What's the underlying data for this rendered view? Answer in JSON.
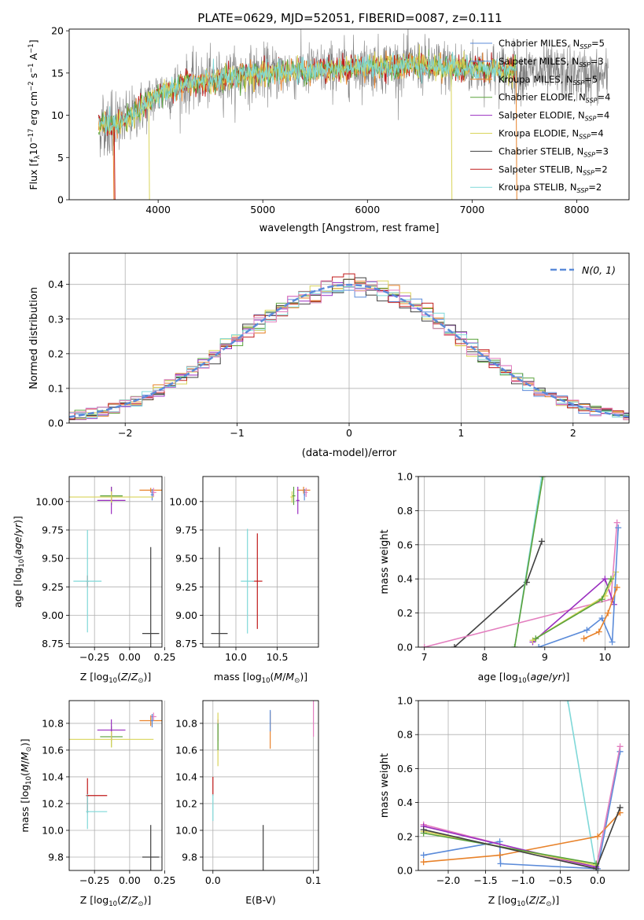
{
  "figure": {
    "title": "PLATE=0629, MJD=52051, FIBERID=0087, z=0.111"
  },
  "colors": {
    "chabrier_miles": "#5b8bd9",
    "salpeter_miles": "#5b8bd9",
    "kroupa_miles": "#e8822a",
    "chabrier_elodie": "#5aa23c",
    "salpeter_elodie": "#9a2fc0",
    "kroupa_elodie": "#d9d45a",
    "chabrier_stelib": "#404040",
    "salpeter_stelib": "#c01a1a",
    "kroupa_stelib": "#7fd8d8",
    "pink": "#e37fbf",
    "data_gray": "#808080",
    "normal_curve": "#5b8bd9",
    "grid": "#b0b0b0"
  },
  "chart_data": [
    {
      "id": "spectrum",
      "type": "line",
      "title": "PLATE=0629, MJD=52051, FIBERID=0087, z=0.111",
      "xlabel": "wavelength [Angstrom, rest frame]",
      "ylabel": "Flux [f_λ 10^-17 erg cm^-2 s^-1 A^-1]",
      "xlim": [
        3150,
        8500
      ],
      "ylim": [
        0,
        20.2
      ],
      "xticks": [
        4000,
        5000,
        6000,
        7000,
        8000
      ],
      "yticks": [
        0,
        5,
        10,
        15,
        20
      ],
      "grid": false,
      "legend_position": "top-right",
      "series": [
        {
          "name": "Chabrier MILES, N_SSP=5",
          "color_key": "chabrier_miles"
        },
        {
          "name": "Salpeter MILES, N_SSP=3",
          "color_key": "salpeter_miles"
        },
        {
          "name": "Kroupa MILES, N_SSP=5",
          "color_key": "kroupa_miles"
        },
        {
          "name": "Chabrier ELODIE, N_SSP=4",
          "color_key": "chabrier_elodie"
        },
        {
          "name": "Salpeter ELODIE, N_SSP=4",
          "color_key": "salpeter_elodie"
        },
        {
          "name": "Kroupa ELODIE, N_SSP=4",
          "color_key": "kroupa_elodie"
        },
        {
          "name": "Chabrier STELIB, N_SSP=3",
          "color_key": "chabrier_stelib"
        },
        {
          "name": "Salpeter STELIB, N_SSP=2",
          "color_key": "salpeter_stelib"
        },
        {
          "name": "Kroupa STELIB, N_SSP=2",
          "color_key": "kroupa_stelib"
        }
      ],
      "continuum": {
        "x": [
          3430,
          3600,
          3800,
          4000,
          4300,
          4600,
          5000,
          5500,
          6000,
          6500,
          7000,
          7500,
          8000,
          8300
        ],
        "y": [
          9.0,
          8.6,
          10.5,
          12.5,
          13.8,
          14.3,
          15.0,
          15.3,
          15.8,
          15.9,
          15.6,
          15.2,
          14.8,
          14.5
        ]
      },
      "data_range": [
        3430,
        8300
      ],
      "model_range": [
        3430,
        7420
      ],
      "dips": [
        {
          "x": 3570,
          "color_key": "kroupa_miles"
        },
        {
          "x": 3580,
          "color_key": "salpeter_stelib"
        },
        {
          "x": 3910,
          "color_key": "kroupa_elodie"
        },
        {
          "x": 6800,
          "color_key": "kroupa_elodie"
        },
        {
          "x": 7420,
          "color_key": "kroupa_miles"
        }
      ]
    },
    {
      "id": "residuals",
      "type": "step-histogram",
      "xlabel": "(data-model)/error",
      "ylabel": "Normed distribution",
      "xlim": [
        -2.5,
        2.5
      ],
      "ylim": [
        0,
        0.49
      ],
      "xticks": [
        -2,
        -1,
        0,
        1,
        2
      ],
      "yticks": [
        0.0,
        0.1,
        0.2,
        0.3,
        0.4
      ],
      "grid": true,
      "legend_position": "top-right",
      "legend": "N(0, 1)",
      "bin_width": 0.1
    },
    {
      "id": "age_vs_Z",
      "type": "errorbar",
      "xlabel": "Z [log10(Z/Z_sun)]",
      "ylabel": "age [log10(age/yr)]",
      "xlim": [
        -0.43,
        0.23
      ],
      "ylim": [
        8.72,
        10.22
      ],
      "xticks": [
        -0.25,
        0.0,
        0.25
      ],
      "yticks": [
        8.75,
        9.0,
        9.25,
        9.5,
        9.75,
        10.0
      ],
      "grid": true,
      "points": [
        {
          "x": 0.15,
          "y": 10.1,
          "xerr": 0.08,
          "yerr": 0.02,
          "color_key": "kroupa_miles"
        },
        {
          "x": 0.17,
          "y": 10.08,
          "xerr": 0.02,
          "yerr": 0.04,
          "color_key": "pink"
        },
        {
          "x": 0.16,
          "y": 10.06,
          "xerr": 0.01,
          "yerr": 0.05,
          "color_key": "chabrier_miles"
        },
        {
          "x": -0.13,
          "y": 10.05,
          "xerr": 0.08,
          "yerr": 0.08,
          "color_key": "chabrier_elodie"
        },
        {
          "x": -0.13,
          "y": 10.01,
          "xerr": 0.1,
          "yerr": 0.12,
          "color_key": "salpeter_elodie"
        },
        {
          "x": -0.13,
          "y": 10.04,
          "xerr": 0.3,
          "yerr": 0.05,
          "color_key": "kroupa_elodie"
        },
        {
          "x": 0.15,
          "y": 8.84,
          "xerr": 0.06,
          "yerr": 0.76,
          "color_key": "chabrier_stelib"
        },
        {
          "x": -0.3,
          "y": 9.3,
          "xerr": 0.01,
          "yerr": 0.05,
          "color_key": "salpeter_stelib"
        },
        {
          "x": -0.3,
          "y": 9.3,
          "xerr": 0.1,
          "yerr": 0.45,
          "color_key": "kroupa_stelib"
        }
      ]
    },
    {
      "id": "age_vs_mass",
      "type": "errorbar",
      "xlabel": "mass [log10(M/M_sun)]",
      "ylabel": "",
      "xlim": [
        9.6,
        11.0
      ],
      "ylim": [
        8.72,
        10.22
      ],
      "xticks": [
        10.0,
        10.5
      ],
      "yticks": [
        8.75,
        9.0,
        9.25,
        9.5,
        9.75,
        10.0
      ],
      "grid": true,
      "points": [
        {
          "x": 10.82,
          "y": 10.1,
          "xerr": 0.08,
          "yerr": 0.03,
          "color_key": "kroupa_miles"
        },
        {
          "x": 10.85,
          "y": 10.08,
          "xerr": 0.02,
          "yerr": 0.04,
          "color_key": "pink"
        },
        {
          "x": 10.83,
          "y": 10.06,
          "xerr": 0.01,
          "yerr": 0.05,
          "color_key": "chabrier_miles"
        },
        {
          "x": 10.7,
          "y": 10.05,
          "xerr": 0.02,
          "yerr": 0.08,
          "color_key": "chabrier_elodie"
        },
        {
          "x": 10.75,
          "y": 10.01,
          "xerr": 0.02,
          "yerr": 0.12,
          "color_key": "salpeter_elodie"
        },
        {
          "x": 10.68,
          "y": 10.04,
          "xerr": 0.02,
          "yerr": 0.05,
          "color_key": "kroupa_elodie"
        },
        {
          "x": 9.8,
          "y": 8.84,
          "xerr": 0.1,
          "yerr": 0.76,
          "color_key": "chabrier_stelib"
        },
        {
          "x": 10.26,
          "y": 9.3,
          "xerr": 0.06,
          "yerr": 0.42,
          "color_key": "salpeter_stelib"
        },
        {
          "x": 10.14,
          "y": 9.3,
          "xerr": 0.08,
          "yerr": 0.46,
          "color_key": "kroupa_stelib"
        }
      ]
    },
    {
      "id": "mass_weight_vs_age",
      "type": "line",
      "xlabel": "age [log10(age/yr)]",
      "ylabel": "mass weight",
      "xlim": [
        6.9,
        10.4
      ],
      "ylim": [
        0,
        1.0
      ],
      "xticks": [
        7,
        8,
        9,
        10
      ],
      "yticks": [
        0.0,
        0.2,
        0.4,
        0.6,
        0.8,
        1.0
      ],
      "grid": true,
      "series": [
        {
          "color_key": "chabrier_stelib",
          "x": [
            7.5,
            8.7,
            8.95
          ],
          "y": [
            0.0,
            0.38,
            0.62
          ]
        },
        {
          "color_key": "kroupa_stelib",
          "x": [
            8.5,
            8.95
          ],
          "y": [
            0.0,
            1.0
          ]
        },
        {
          "color_key": "chabrier_elodie",
          "x": [
            8.5,
            8.97
          ],
          "y": [
            0.0,
            1.0
          ]
        },
        {
          "color_key": "pink",
          "x": [
            7.0,
            10.1,
            10.2
          ],
          "y": [
            0.0,
            0.28,
            0.73
          ]
        },
        {
          "color_key": "salpeter_elodie",
          "x": [
            8.8,
            10.0,
            10.15
          ],
          "y": [
            0.03,
            0.4,
            0.25
          ]
        },
        {
          "color_key": "kroupa_elodie",
          "x": [
            8.8,
            10.0,
            10.18
          ],
          "y": [
            0.04,
            0.3,
            0.44
          ]
        },
        {
          "color_key": "chabrier_elodie",
          "x": [
            8.85,
            9.95,
            10.1
          ],
          "y": [
            0.05,
            0.28,
            0.4
          ]
        },
        {
          "color_key": "chabrier_miles",
          "x": [
            8.9,
            9.7,
            9.95,
            10.12,
            10.22
          ],
          "y": [
            0.0,
            0.1,
            0.17,
            0.03,
            0.7
          ]
        },
        {
          "color_key": "kroupa_miles",
          "x": [
            9.65,
            9.9,
            10.05,
            10.2
          ],
          "y": [
            0.05,
            0.09,
            0.2,
            0.35
          ]
        }
      ]
    },
    {
      "id": "mass_vs_Z",
      "type": "errorbar",
      "xlabel": "Z [log10(Z/Z_sun)]",
      "ylabel": "mass [log10(M/M_sun)]",
      "xlim": [
        -0.43,
        0.23
      ],
      "ylim": [
        9.7,
        10.97
      ],
      "xticks": [
        -0.25,
        0.0,
        0.25
      ],
      "yticks": [
        9.8,
        10.0,
        10.2,
        10.4,
        10.6,
        10.8
      ],
      "grid": true,
      "points": [
        {
          "x": 0.15,
          "y": 10.82,
          "xerr": 0.08,
          "yerr": 0.04,
          "color_key": "kroupa_miles"
        },
        {
          "x": 0.17,
          "y": 10.85,
          "xerr": 0.02,
          "yerr": 0.03,
          "color_key": "pink"
        },
        {
          "x": 0.16,
          "y": 10.82,
          "xerr": 0.01,
          "yerr": 0.05,
          "color_key": "chabrier_miles"
        },
        {
          "x": -0.13,
          "y": 10.7,
          "xerr": 0.08,
          "yerr": 0.08,
          "color_key": "chabrier_elodie"
        },
        {
          "x": -0.13,
          "y": 10.75,
          "xerr": 0.1,
          "yerr": 0.08,
          "color_key": "salpeter_elodie"
        },
        {
          "x": -0.13,
          "y": 10.68,
          "xerr": 0.3,
          "yerr": 0.06,
          "color_key": "kroupa_elodie"
        },
        {
          "x": 0.15,
          "y": 9.8,
          "xerr": 0.06,
          "yerr": 0.24,
          "color_key": "chabrier_stelib"
        },
        {
          "x": -0.3,
          "y": 10.26,
          "xerr": 0.01,
          "yerr": 0.13,
          "color_key": "salpeter_stelib"
        },
        {
          "x": -0.3,
          "y": 10.14,
          "xerr": 0.01,
          "yerr": 0.13,
          "color_key": "kroupa_stelib"
        },
        {
          "x": -0.23,
          "y": 10.26,
          "xerr": 0.07,
          "yerr": 0.0,
          "color_key": "salpeter_stelib"
        },
        {
          "x": -0.23,
          "y": 10.14,
          "xerr": 0.07,
          "yerr": 0.0,
          "color_key": "kroupa_stelib"
        }
      ]
    },
    {
      "id": "mass_vs_EBV",
      "type": "errorbar",
      "xlabel": "E(B-V)",
      "ylabel": "",
      "xlim": [
        -0.01,
        0.105
      ],
      "ylim": [
        9.7,
        10.97
      ],
      "xticks": [
        0.0,
        0.1
      ],
      "yticks": [
        9.8,
        10.0,
        10.2,
        10.4,
        10.6,
        10.8
      ],
      "grid": true,
      "points": [
        {
          "x": 0.1,
          "y": 10.85,
          "xerr": 0.0,
          "yerr": 0.15,
          "color_key": "pink"
        },
        {
          "x": 0.057,
          "y": 10.75,
          "xerr": 0.0,
          "yerr": 0.14,
          "color_key": "kroupa_miles"
        },
        {
          "x": 0.057,
          "y": 10.82,
          "xerr": 0.0,
          "yerr": 0.08,
          "color_key": "chabrier_miles"
        },
        {
          "x": 0.005,
          "y": 10.75,
          "xerr": 0.0,
          "yerr": 0.08,
          "color_key": "salpeter_elodie"
        },
        {
          "x": 0.005,
          "y": 10.68,
          "xerr": 0.0,
          "yerr": 0.2,
          "color_key": "kroupa_elodie"
        },
        {
          "x": 0.005,
          "y": 10.7,
          "xerr": 0.0,
          "yerr": 0.1,
          "color_key": "chabrier_elodie"
        },
        {
          "x": 0.0,
          "y": 10.33,
          "xerr": 0.0,
          "yerr": 0.07,
          "color_key": "salpeter_stelib"
        },
        {
          "x": 0.0,
          "y": 10.17,
          "xerr": 0.0,
          "yerr": 0.1,
          "color_key": "kroupa_stelib"
        },
        {
          "x": 0.05,
          "y": 9.8,
          "xerr": 0.0,
          "yerr": 0.24,
          "color_key": "chabrier_stelib"
        }
      ]
    },
    {
      "id": "mass_weight_vs_Z",
      "type": "line",
      "xlabel": "Z [log10(Z/Z_sun)]",
      "ylabel": "mass weight",
      "xlim": [
        -2.4,
        0.42
      ],
      "ylim": [
        0,
        1.0
      ],
      "xticks": [
        -2.0,
        -1.5,
        -1.0,
        -0.5,
        0.0
      ],
      "yticks": [
        0.0,
        0.2,
        0.4,
        0.6,
        0.8,
        1.0
      ],
      "grid": true,
      "series": [
        {
          "color_key": "kroupa_stelib",
          "x": [
            -0.4,
            -0.02
          ],
          "y": [
            1.0,
            0.0
          ]
        },
        {
          "color_key": "chabrier_miles",
          "x": [
            -2.33,
            -1.31,
            -1.3,
            0.0,
            0.3
          ],
          "y": [
            0.09,
            0.17,
            0.04,
            0.01,
            0.7
          ]
        },
        {
          "color_key": "kroupa_miles",
          "x": [
            -2.33,
            -1.31,
            0.0,
            0.3
          ],
          "y": [
            0.05,
            0.09,
            0.2,
            0.34
          ]
        },
        {
          "color_key": "pink",
          "x": [
            -2.33,
            -0.02,
            0.3
          ],
          "y": [
            0.27,
            0.01,
            0.73
          ]
        },
        {
          "color_key": "salpeter_elodie",
          "x": [
            -2.33,
            -0.02
          ],
          "y": [
            0.26,
            0.02
          ]
        },
        {
          "color_key": "kroupa_elodie",
          "x": [
            -2.33,
            -0.02
          ],
          "y": [
            0.23,
            0.03
          ]
        },
        {
          "color_key": "chabrier_elodie",
          "x": [
            -2.33,
            -0.02
          ],
          "y": [
            0.22,
            0.04
          ]
        },
        {
          "color_key": "chabrier_stelib",
          "x": [
            -2.33,
            -0.02,
            0.3
          ],
          "y": [
            0.24,
            0.01,
            0.37
          ]
        }
      ]
    }
  ]
}
